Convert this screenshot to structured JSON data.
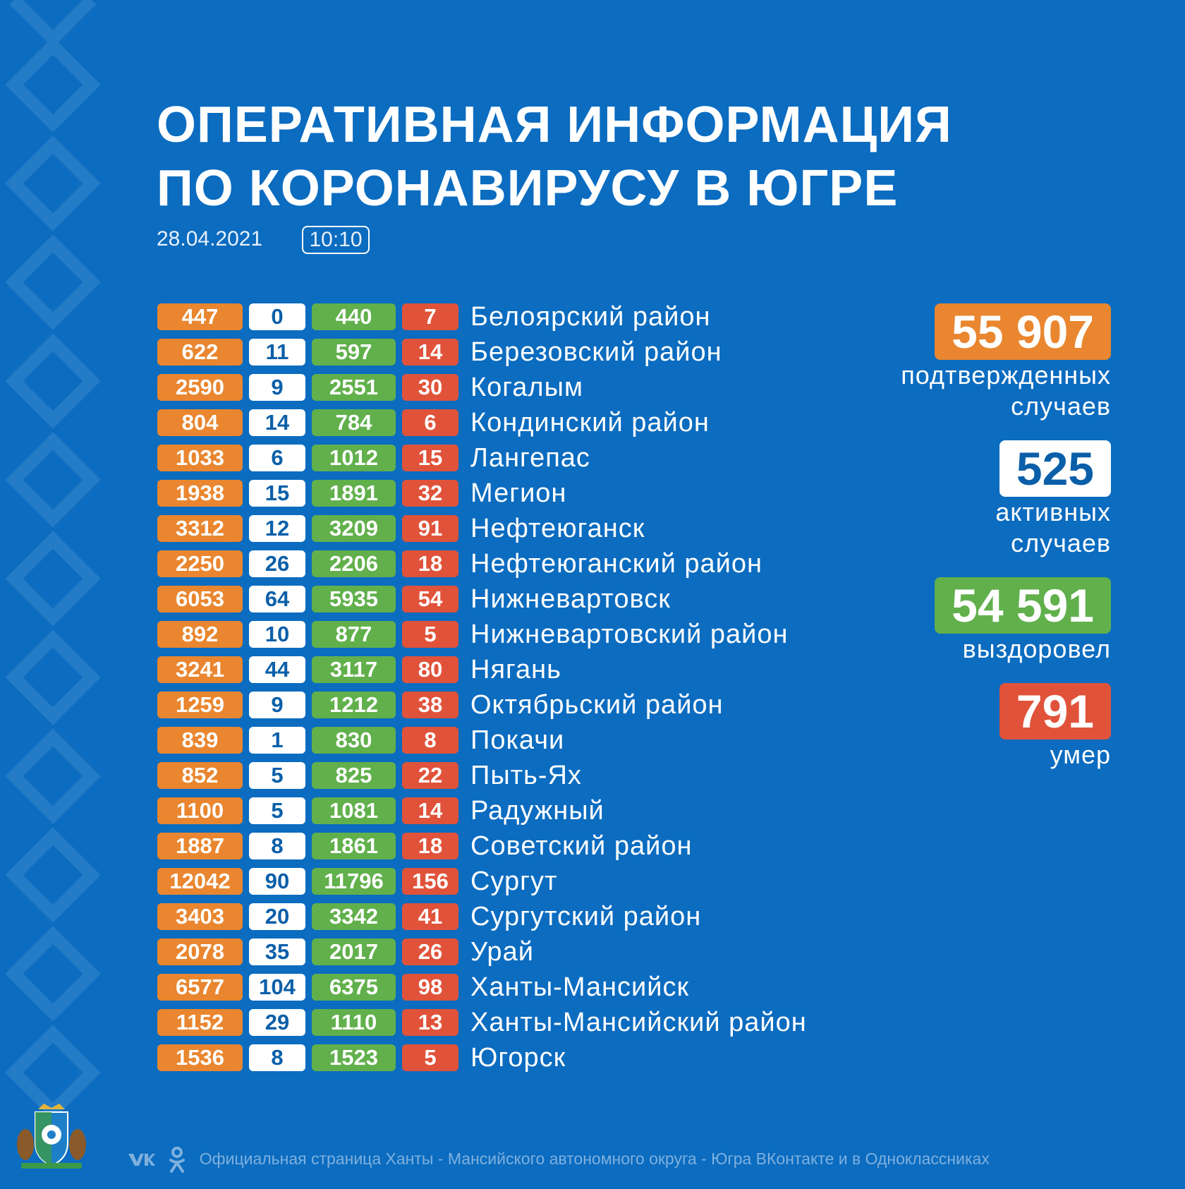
{
  "header": {
    "title_line1": "ОПЕРАТИВНАЯ ИНФОРМАЦИЯ",
    "title_line2": "ПО КОРОНАВИРУСУ В ЮГРЕ",
    "date": "28.04.2021",
    "time": "10:10"
  },
  "colors": {
    "background": "#0b6cc0",
    "confirmed": "#e9862f",
    "active": "#ffffff",
    "recovered": "#61b04c",
    "deaths": "#e0533a"
  },
  "rows": [
    {
      "confirmed": "447",
      "active": "0",
      "recovered": "440",
      "deaths": "7",
      "name": "Белоярский район"
    },
    {
      "confirmed": "622",
      "active": "11",
      "recovered": "597",
      "deaths": "14",
      "name": "Березовский район"
    },
    {
      "confirmed": "2590",
      "active": "9",
      "recovered": "2551",
      "deaths": "30",
      "name": "Когалым"
    },
    {
      "confirmed": "804",
      "active": "14",
      "recovered": "784",
      "deaths": "6",
      "name": "Кондинский район"
    },
    {
      "confirmed": "1033",
      "active": "6",
      "recovered": "1012",
      "deaths": "15",
      "name": "Лангепас"
    },
    {
      "confirmed": "1938",
      "active": "15",
      "recovered": "1891",
      "deaths": "32",
      "name": "Мегион"
    },
    {
      "confirmed": "3312",
      "active": "12",
      "recovered": "3209",
      "deaths": "91",
      "name": "Нефтеюганск"
    },
    {
      "confirmed": "2250",
      "active": "26",
      "recovered": "2206",
      "deaths": "18",
      "name": "Нефтеюганский район"
    },
    {
      "confirmed": "6053",
      "active": "64",
      "recovered": "5935",
      "deaths": "54",
      "name": "Нижневартовск"
    },
    {
      "confirmed": "892",
      "active": "10",
      "recovered": "877",
      "deaths": "5",
      "name": "Нижневартовский район"
    },
    {
      "confirmed": "3241",
      "active": "44",
      "recovered": "3117",
      "deaths": "80",
      "name": "Нягань"
    },
    {
      "confirmed": "1259",
      "active": "9",
      "recovered": "1212",
      "deaths": "38",
      "name": "Октябрьский район"
    },
    {
      "confirmed": "839",
      "active": "1",
      "recovered": "830",
      "deaths": "8",
      "name": "Покачи"
    },
    {
      "confirmed": "852",
      "active": "5",
      "recovered": "825",
      "deaths": "22",
      "name": "Пыть-Ях"
    },
    {
      "confirmed": "1100",
      "active": "5",
      "recovered": "1081",
      "deaths": "14",
      "name": "Радужный"
    },
    {
      "confirmed": "1887",
      "active": "8",
      "recovered": "1861",
      "deaths": "18",
      "name": "Советский район"
    },
    {
      "confirmed": "12042",
      "active": "90",
      "recovered": "11796",
      "deaths": "156",
      "name": "Сургут"
    },
    {
      "confirmed": "3403",
      "active": "20",
      "recovered": "3342",
      "deaths": "41",
      "name": "Сургутский район"
    },
    {
      "confirmed": "2078",
      "active": "35",
      "recovered": "2017",
      "deaths": "26",
      "name": "Урай"
    },
    {
      "confirmed": "6577",
      "active": "104",
      "recovered": "6375",
      "deaths": "98",
      "name": "Ханты-Мансийск"
    },
    {
      "confirmed": "1152",
      "active": "29",
      "recovered": "1110",
      "deaths": "13",
      "name": "Ханты-Мансийский район"
    },
    {
      "confirmed": "1536",
      "active": "8",
      "recovered": "1523",
      "deaths": "5",
      "name": "Югорск"
    }
  ],
  "summary": {
    "confirmed": {
      "value": "55 907",
      "caption_line1": "подтвержденных",
      "caption_line2": "случаев"
    },
    "active": {
      "value": "525",
      "caption_line1": "активных",
      "caption_line2": "случаев"
    },
    "recovered": {
      "value": "54 591",
      "caption": "выздоровел"
    },
    "deaths": {
      "value": "791",
      "caption": "умер"
    }
  },
  "footer": {
    "text": "Официальная страница Ханты - Мансийского автономного округа - Югра ВКонтакте и в Одноклассниках",
    "icons": [
      "vk-icon",
      "odnoklassniki-icon"
    ]
  },
  "emblem": {
    "icon": "coat-of-arms-icon"
  }
}
